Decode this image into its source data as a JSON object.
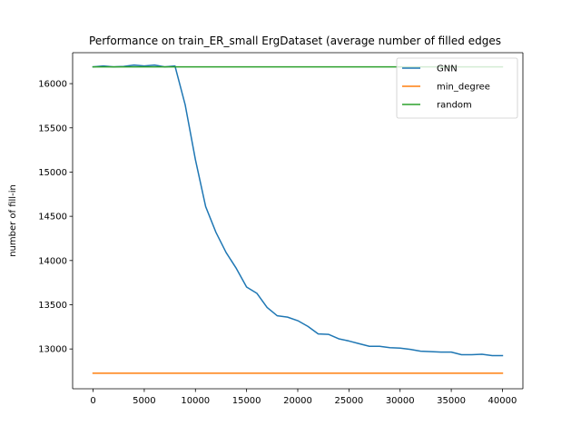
{
  "chart_data": {
    "type": "line",
    "title": "Performance on train_ER_small ErgDataset (average number of filled edges",
    "xlabel": "",
    "ylabel": "number of fill-in",
    "xlim": [
      -2000,
      42000
    ],
    "ylim": [
      12550,
      16350
    ],
    "xticks": [
      0,
      5000,
      10000,
      15000,
      20000,
      25000,
      30000,
      35000,
      40000
    ],
    "yticks": [
      13000,
      13500,
      14000,
      14500,
      15000,
      15500,
      16000
    ],
    "legend_position": "upper-right",
    "series": [
      {
        "name": "GNN",
        "color": "#1f77b4",
        "x": [
          0,
          1000,
          2000,
          3000,
          4000,
          5000,
          6000,
          7000,
          8000,
          9000,
          10000,
          11000,
          12000,
          13000,
          14000,
          15000,
          16000,
          17000,
          18000,
          19000,
          20000,
          21000,
          22000,
          23000,
          24000,
          25000,
          26000,
          27000,
          28000,
          29000,
          30000,
          31000,
          32000,
          33000,
          34000,
          35000,
          36000,
          37000,
          38000,
          39000,
          40000
        ],
        "y": [
          16190,
          16200,
          16190,
          16195,
          16210,
          16200,
          16210,
          16190,
          16200,
          15760,
          15140,
          14610,
          14320,
          14090,
          13910,
          13700,
          13630,
          13470,
          13375,
          13360,
          13320,
          13255,
          13170,
          13165,
          13115,
          13090,
          13060,
          13030,
          13030,
          13015,
          13010,
          12995,
          12975,
          12970,
          12965,
          12965,
          12935,
          12935,
          12940,
          12925,
          12925
        ]
      },
      {
        "name": "min_degree",
        "color": "#ff7f0e",
        "x": [
          0,
          40000
        ],
        "y": [
          12726,
          12726
        ]
      },
      {
        "name": "random",
        "color": "#2ca02c",
        "x": [
          0,
          40000
        ],
        "y": [
          16190,
          16190
        ]
      }
    ]
  }
}
